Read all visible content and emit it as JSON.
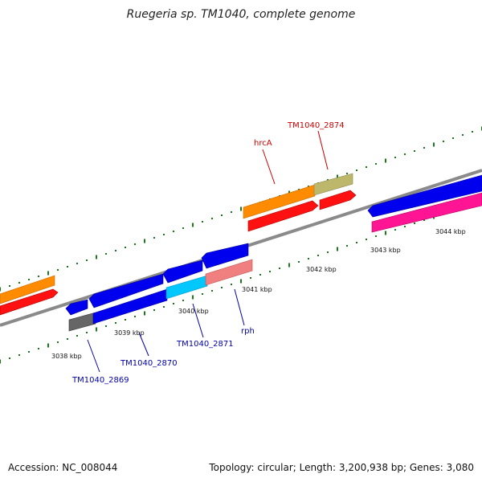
{
  "title": "Ruegeria sp. TM1040, complete genome",
  "footer": {
    "accession": "Accession: NC_008044",
    "summary": "Topology: circular; Length: 3,200,938 bp; Genes: 3,080"
  },
  "colors": {
    "backbone": "#8a8a8a",
    "tick": "#1a7a1a",
    "forward_label": "#cc0000",
    "reverse_label": "#0000aa"
  },
  "scale_labels": [
    "3038 kbp",
    "3039 kbp",
    "3040 kbp",
    "3041 kbp",
    "3042 kbp",
    "3043 kbp",
    "3044 kbp"
  ],
  "gene_labels": [
    {
      "text": "hrcA",
      "strand": "forward"
    },
    {
      "text": "TM1040_2874",
      "strand": "forward"
    },
    {
      "text": "TM1040_2869",
      "strand": "reverse"
    },
    {
      "text": "TM1040_2870",
      "strand": "reverse"
    },
    {
      "text": "TM1040_2871",
      "strand": "reverse"
    },
    {
      "text": "rph",
      "strand": "reverse"
    }
  ]
}
